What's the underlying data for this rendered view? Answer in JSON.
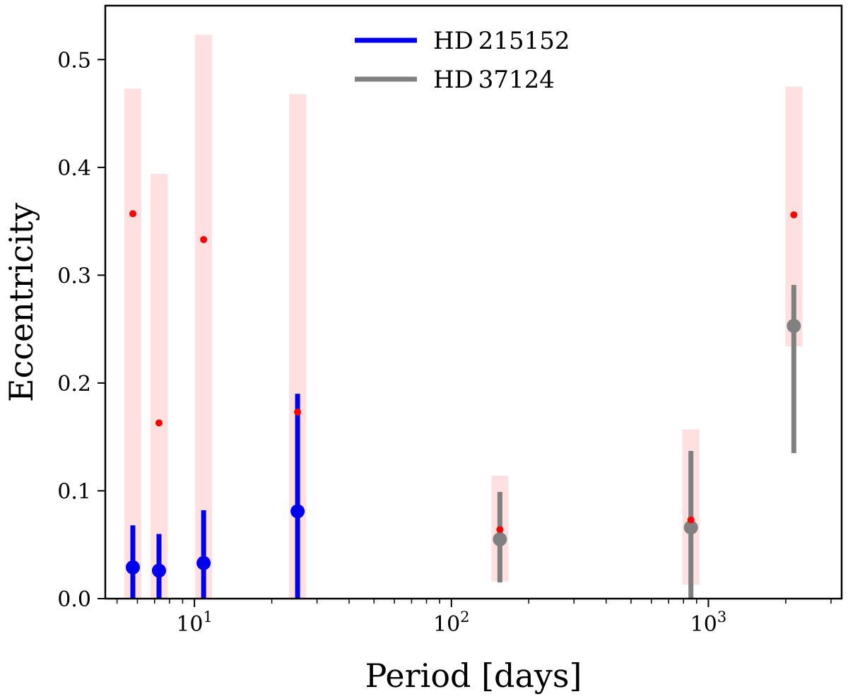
{
  "chart_data": {
    "type": "scatter",
    "xscale": "log",
    "xlim": [
      4.5,
      3300
    ],
    "ylim": [
      0,
      0.55
    ],
    "xlabel": "Period [days]",
    "ylabel": "Eccentricity",
    "xticks": [
      {
        "value": 10,
        "base": "10",
        "exp": "1"
      },
      {
        "value": 100,
        "base": "10",
        "exp": "2"
      },
      {
        "value": 1000,
        "base": "10",
        "exp": "3"
      }
    ],
    "yticks": [
      0.0,
      0.1,
      0.2,
      0.3,
      0.4,
      0.5
    ],
    "ytick_labels": [
      "0.0",
      "0.1",
      "0.2",
      "0.3",
      "0.4",
      "0.5"
    ],
    "legend": {
      "placement": "upper-center",
      "entries": [
        {
          "label": "HD 215152",
          "color": "#0000ee"
        },
        {
          "label": "HD 37124",
          "color": "#808080"
        }
      ]
    },
    "series": [
      {
        "name": "HD 215152",
        "color": "#0000ee",
        "points": [
          {
            "period": 5.76,
            "e": 0.029,
            "e_low": 0.0,
            "e_high": 0.068
          },
          {
            "period": 7.28,
            "e": 0.026,
            "e_low": 0.0,
            "e_high": 0.06
          },
          {
            "period": 10.86,
            "e": 0.033,
            "e_low": 0.0,
            "e_high": 0.082
          },
          {
            "period": 25.2,
            "e": 0.081,
            "e_low": 0.0,
            "e_high": 0.19
          }
        ]
      },
      {
        "name": "HD 37124",
        "color": "#808080",
        "points": [
          {
            "period": 154.4,
            "e": 0.055,
            "e_low": 0.015,
            "e_high": 0.099
          },
          {
            "period": 855,
            "e": 0.066,
            "e_low": 0.0,
            "e_high": 0.137
          },
          {
            "period": 2150,
            "e": 0.253,
            "e_low": 0.135,
            "e_high": 0.291
          }
        ]
      }
    ],
    "predicted": {
      "color": "#ff0000",
      "band_color": "#ffe0e0",
      "points": [
        {
          "period": 5.76,
          "e": 0.357,
          "band_low": 0.0,
          "band_high": 0.473
        },
        {
          "period": 7.28,
          "e": 0.163,
          "band_low": 0.0,
          "band_high": 0.394
        },
        {
          "period": 10.86,
          "e": 0.333,
          "band_low": 0.0,
          "band_high": 0.523
        },
        {
          "period": 25.2,
          "e": 0.173,
          "band_low": 0.0,
          "band_high": 0.468
        },
        {
          "period": 154.4,
          "e": 0.064,
          "band_low": 0.016,
          "band_high": 0.114
        },
        {
          "period": 855,
          "e": 0.073,
          "band_low": 0.013,
          "band_high": 0.157
        },
        {
          "period": 2150,
          "e": 0.356,
          "band_low": 0.234,
          "band_high": 0.475
        }
      ]
    }
  }
}
